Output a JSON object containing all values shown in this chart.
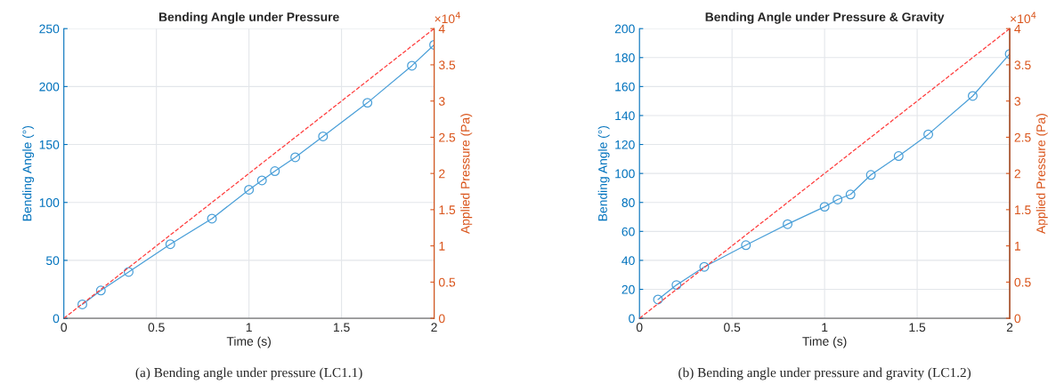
{
  "chart_data": [
    {
      "type": "line",
      "title": "Bending Angle under Pressure",
      "xlabel": "Time (s)",
      "ylabel": "Bending Angle (°)",
      "y2label": "Applied Pressure (Pa)",
      "xlim": [
        0,
        2
      ],
      "xticks": [
        0,
        0.5,
        1,
        1.5,
        2
      ],
      "ylim": [
        0,
        250
      ],
      "yticks": [
        0,
        50,
        100,
        150,
        200,
        250
      ],
      "y2lim": [
        0,
        4
      ],
      "y2ticks": [
        0,
        0.5,
        1,
        1.5,
        2,
        2.5,
        3,
        3.5,
        4
      ],
      "grid": true,
      "series": [
        {
          "color": "#4a9fd8",
          "marker": "circle",
          "line_style": "solid",
          "x": [
            0.1,
            0.2,
            0.35,
            0.575,
            0.8,
            1.0,
            1.07,
            1.14,
            1.25,
            1.4,
            1.64,
            1.88,
            2.0
          ],
          "values": [
            12,
            24,
            40,
            64,
            86,
            111,
            119,
            127,
            139,
            157,
            186,
            218,
            236
          ]
        },
        {
          "color": "#ff3b3b",
          "axis": "y2",
          "marker": "none",
          "line_style": "dashed",
          "x": [
            0,
            2
          ],
          "values": [
            0,
            4
          ]
        }
      ],
      "annotations": [
        "×10$^{4}$",
        "(a) Bending angle under pressure (LC1.1)"
      ]
    },
    {
      "type": "line",
      "title": "Bending Angle under Pressure & Gravity",
      "xlabel": "Time (s)",
      "ylabel": "Bending Angle (°)",
      "y2label": "Applied Pressure (Pa)",
      "xlim": [
        0,
        2
      ],
      "xticks": [
        0,
        0.5,
        1,
        1.5,
        2
      ],
      "ylim": [
        0,
        200
      ],
      "yticks": [
        0,
        20,
        40,
        60,
        80,
        100,
        120,
        140,
        160,
        180,
        200
      ],
      "y2lim": [
        0,
        4
      ],
      "y2ticks": [
        0,
        0.5,
        1,
        1.5,
        2,
        2.5,
        3,
        3.5,
        4
      ],
      "grid": true,
      "series": [
        {
          "color": "#4a9fd8",
          "marker": "circle",
          "line_style": "solid",
          "x": [
            0.1,
            0.2,
            0.35,
            0.575,
            0.8,
            1.0,
            1.07,
            1.14,
            1.25,
            1.4,
            1.56,
            1.8,
            2.0
          ],
          "values": [
            13,
            23,
            35.5,
            50.5,
            65,
            77,
            82,
            85.5,
            99,
            112,
            127,
            153.5,
            182.5
          ]
        },
        {
          "color": "#ff3b3b",
          "axis": "y2",
          "marker": "none",
          "line_style": "dashed",
          "x": [
            0,
            2
          ],
          "values": [
            0,
            4
          ]
        }
      ],
      "annotations": [
        "×10$^{4}$",
        "(b) Bending angle under pressure and gravity (LC1.2)"
      ]
    }
  ]
}
